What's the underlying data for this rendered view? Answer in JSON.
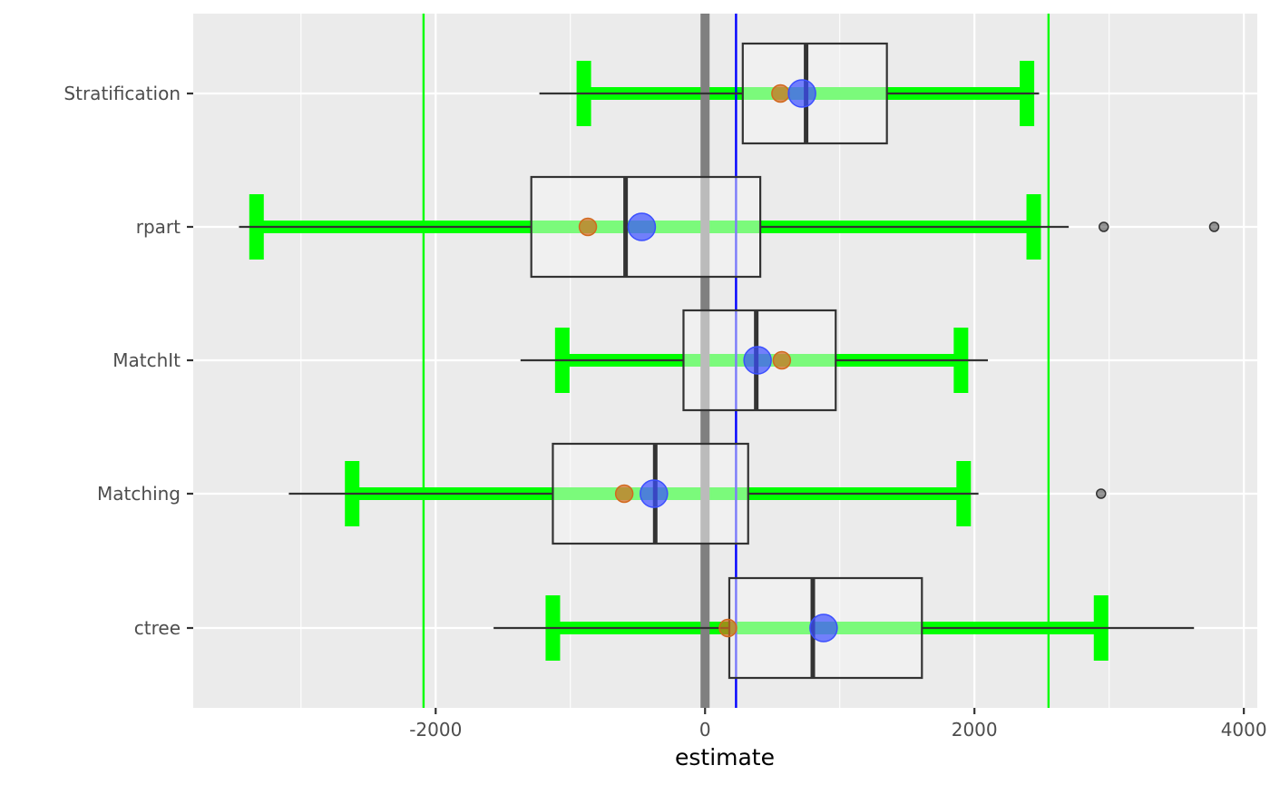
{
  "chart_data": {
    "type": "boxplot",
    "orientation": "horizontal",
    "title": "",
    "xlabel": "estimate",
    "ylabel": "",
    "xlim": [
      -3800,
      4100
    ],
    "x_ticks": [
      -2000,
      0,
      2000,
      4000
    ],
    "x_tick_labels": [
      "-2000",
      "0",
      "2000",
      "4000"
    ],
    "categories": [
      "Stratification",
      "rpart",
      "MatchIt",
      "Matching",
      "ctree"
    ],
    "grid": true,
    "panel_background": "#ebebeb",
    "reference_lines": [
      {
        "x": 0,
        "color": "#808080",
        "style": "thick"
      },
      {
        "x": 230,
        "color": "#0000ff",
        "style": "thin"
      },
      {
        "x": -2090,
        "color": "#00ff00",
        "style": "thin"
      },
      {
        "x": 2550,
        "color": "#00ff00",
        "style": "thin"
      }
    ],
    "boxes": [
      {
        "category": "Stratification",
        "whisker_low": -1230,
        "q1": 280,
        "median": 750,
        "q3": 1350,
        "whisker_high": 2480,
        "outliers": []
      },
      {
        "category": "rpart",
        "whisker_low": -3460,
        "q1": -1290,
        "median": -590,
        "q3": 410,
        "whisker_high": 2700,
        "outliers": [
          2960,
          3780
        ]
      },
      {
        "category": "MatchIt",
        "whisker_low": -1370,
        "q1": -160,
        "median": 380,
        "q3": 970,
        "whisker_high": 2100,
        "outliers": []
      },
      {
        "category": "Matching",
        "whisker_low": -3090,
        "q1": -1130,
        "median": -370,
        "q3": 320,
        "whisker_high": 2030,
        "outliers": [
          2940
        ]
      },
      {
        "category": "ctree",
        "whisker_low": -1570,
        "q1": 180,
        "median": 800,
        "q3": 1610,
        "whisker_high": 3630,
        "outliers": []
      }
    ],
    "intervals": [
      {
        "category": "Stratification",
        "low": -900,
        "high": 2390
      },
      {
        "category": "rpart",
        "low": -3330,
        "high": 2440
      },
      {
        "category": "MatchIt",
        "low": -1060,
        "high": 1900
      },
      {
        "category": "Matching",
        "low": -2620,
        "high": 1920
      },
      {
        "category": "ctree",
        "low": -1130,
        "high": 2940
      }
    ],
    "point_series": [
      {
        "color": "#d2691e",
        "values": [
          560,
          -870,
          570,
          -600,
          170
        ]
      },
      {
        "color": "#3b4fff",
        "values": [
          720,
          -470,
          390,
          -380,
          880
        ]
      }
    ],
    "colors": {
      "interval": "#00ff00",
      "box_fill": "#f5f5f5",
      "box_stroke": "#333333",
      "grid": "#ffffff"
    }
  }
}
